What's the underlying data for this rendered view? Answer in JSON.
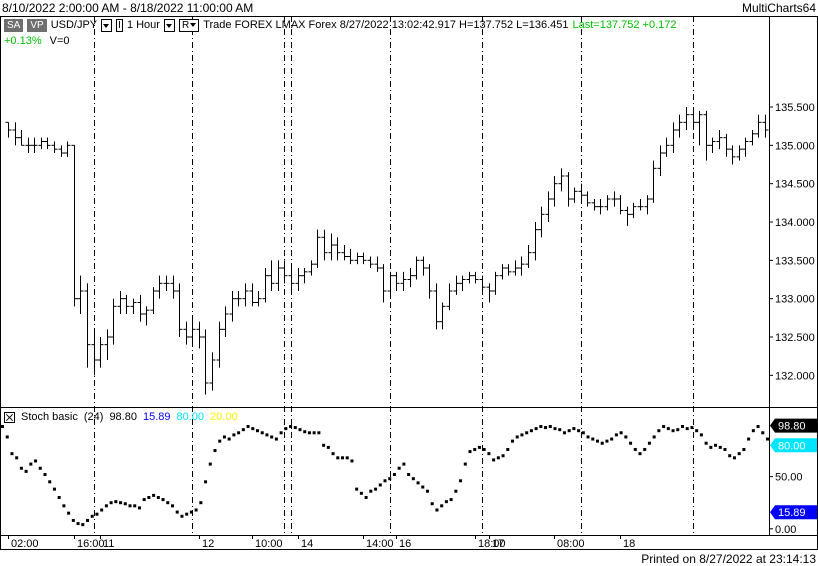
{
  "window": {
    "date_range": "8/10/2022 2:00:00 AM - 8/18/2022 11:00:00 AM",
    "brand": "MultiCharts64",
    "printed": "Printed on 8/27/2022 at 23:14:13"
  },
  "toolbar": {
    "sa_button": "SA",
    "vp_button": "VP",
    "symbol": "USD/JPY",
    "i_dropdown": "I",
    "interval": "1 Hour",
    "r_dropdown": "R",
    "info_text": "Trade  FOREX  LMAX  Forex  8/27/2022  13:02:42.917  H=137.752  L=136.451",
    "last": "Last=137.752  +0.172",
    "change_pct": "+0.13%",
    "volume": "V=0"
  },
  "indicator": {
    "name": "Stoch basic",
    "length": "(24)",
    "v1": "98.80",
    "v2": "15.89",
    "v3": "80.00",
    "v4": "20.00",
    "badge_top": "98.80",
    "badge_mid": "80.00",
    "badge_bot": "15.89"
  },
  "colors": {
    "v1": "#000000",
    "v2": "#0000ff",
    "v3": "#00e5ff",
    "v4": "#ffff00",
    "last": "#00c000",
    "gridline": "#000000"
  },
  "chart_data": [
    {
      "type": "ohlc",
      "series": "USD/JPY",
      "y_tick_labels": [
        "132.000",
        "132.500",
        "133.000",
        "133.500",
        "134.000",
        "134.500",
        "135.000",
        "135.500"
      ],
      "ylim": [
        131.6,
        136.1
      ],
      "x_tick_labels": [
        "02:00",
        "16:00",
        "11",
        "12",
        "10:00",
        "14",
        "14:00",
        "16",
        "18:00",
        "17",
        "08:00",
        "18"
      ],
      "session_separators": [
        "11",
        "12",
        "14",
        "14",
        "16",
        "17",
        "18"
      ],
      "bars": [
        [
          135.3,
          135.3,
          135.1,
          135.2
        ],
        [
          135.2,
          135.3,
          135.0,
          135.1
        ],
        [
          135.1,
          135.2,
          135.0,
          135.0
        ],
        [
          135.0,
          135.1,
          134.9,
          135.0
        ],
        [
          135.0,
          135.1,
          134.9,
          135.0
        ],
        [
          135.0,
          135.1,
          134.95,
          135.05
        ],
        [
          135.05,
          135.1,
          134.95,
          135.0
        ],
        [
          135.0,
          135.05,
          134.9,
          134.95
        ],
        [
          134.95,
          135.0,
          134.85,
          134.9
        ],
        [
          134.9,
          135.05,
          134.85,
          135.0
        ],
        [
          135.0,
          135.0,
          132.9,
          133.0
        ],
        [
          133.0,
          133.3,
          132.8,
          133.1
        ],
        [
          133.1,
          133.2,
          132.1,
          132.4
        ],
        [
          132.4,
          132.6,
          132.0,
          132.2
        ],
        [
          132.2,
          132.5,
          132.1,
          132.4
        ],
        [
          132.4,
          132.6,
          132.2,
          132.5
        ],
        [
          132.5,
          133.0,
          132.4,
          132.9
        ],
        [
          132.9,
          133.1,
          132.8,
          133.0
        ],
        [
          133.0,
          133.05,
          132.8,
          132.9
        ],
        [
          132.9,
          133.0,
          132.8,
          132.95
        ],
        [
          132.95,
          133.05,
          132.7,
          132.8
        ],
        [
          132.8,
          132.9,
          132.65,
          132.85
        ],
        [
          132.85,
          133.15,
          132.8,
          133.1
        ],
        [
          133.1,
          133.3,
          133.0,
          133.2
        ],
        [
          133.2,
          133.3,
          133.1,
          133.2
        ],
        [
          133.2,
          133.3,
          133.0,
          133.1
        ],
        [
          133.1,
          133.2,
          132.5,
          132.6
        ],
        [
          132.6,
          132.7,
          132.4,
          132.5
        ],
        [
          132.5,
          132.75,
          132.4,
          132.6
        ],
        [
          132.6,
          132.7,
          132.35,
          132.5
        ],
        [
          132.5,
          132.6,
          131.75,
          131.9
        ],
        [
          131.9,
          132.3,
          131.8,
          132.2
        ],
        [
          132.2,
          132.7,
          132.1,
          132.6
        ],
        [
          132.6,
          132.9,
          132.5,
          132.8
        ],
        [
          132.8,
          133.1,
          132.7,
          133.0
        ],
        [
          133.0,
          133.1,
          132.9,
          133.0
        ],
        [
          133.0,
          133.2,
          132.9,
          133.1
        ],
        [
          133.1,
          133.2,
          132.9,
          132.95
        ],
        [
          132.95,
          133.1,
          132.9,
          133.0
        ],
        [
          133.0,
          133.4,
          132.95,
          133.3
        ],
        [
          133.3,
          133.5,
          133.1,
          133.2
        ],
        [
          133.2,
          133.5,
          133.1,
          133.4
        ],
        [
          133.4,
          133.5,
          133.2,
          133.3
        ],
        [
          133.3,
          133.4,
          133.1,
          133.2
        ],
        [
          133.2,
          133.4,
          133.1,
          133.3
        ],
        [
          133.3,
          133.4,
          133.2,
          133.35
        ],
        [
          133.35,
          133.5,
          133.3,
          133.45
        ],
        [
          133.45,
          133.9,
          133.4,
          133.8
        ],
        [
          133.8,
          133.9,
          133.5,
          133.6
        ],
        [
          133.6,
          133.85,
          133.5,
          133.7
        ],
        [
          133.7,
          133.8,
          133.5,
          133.6
        ],
        [
          133.6,
          133.7,
          133.5,
          133.55
        ],
        [
          133.55,
          133.65,
          133.45,
          133.5
        ],
        [
          133.5,
          133.6,
          133.45,
          133.55
        ],
        [
          133.55,
          133.6,
          133.45,
          133.5
        ],
        [
          133.5,
          133.55,
          133.4,
          133.45
        ],
        [
          133.45,
          133.55,
          133.35,
          133.4
        ],
        [
          133.4,
          133.45,
          132.95,
          133.1
        ],
        [
          133.1,
          133.35,
          133.0,
          133.3
        ],
        [
          133.3,
          133.35,
          133.1,
          133.2
        ],
        [
          133.2,
          133.35,
          133.1,
          133.25
        ],
        [
          133.25,
          133.4,
          133.15,
          133.3
        ],
        [
          133.3,
          133.55,
          133.25,
          133.5
        ],
        [
          133.5,
          133.55,
          133.3,
          133.4
        ],
        [
          133.4,
          133.45,
          133.0,
          133.1
        ],
        [
          133.1,
          133.2,
          132.6,
          132.7
        ],
        [
          132.7,
          132.95,
          132.6,
          132.9
        ],
        [
          132.9,
          133.2,
          132.85,
          133.1
        ],
        [
          133.1,
          133.3,
          133.05,
          133.2
        ],
        [
          133.2,
          133.3,
          133.1,
          133.25
        ],
        [
          133.25,
          133.35,
          133.2,
          133.3
        ],
        [
          133.3,
          133.35,
          133.2,
          133.25
        ],
        [
          133.25,
          133.3,
          133.1,
          133.15
        ],
        [
          133.15,
          133.2,
          132.95,
          133.1
        ],
        [
          133.1,
          133.35,
          133.05,
          133.3
        ],
        [
          133.3,
          133.45,
          133.25,
          133.4
        ],
        [
          133.4,
          133.45,
          133.3,
          133.35
        ],
        [
          133.35,
          133.5,
          133.3,
          133.4
        ],
        [
          133.4,
          133.55,
          133.3,
          133.45
        ],
        [
          133.45,
          133.7,
          133.4,
          133.6
        ],
        [
          133.6,
          134.0,
          133.5,
          133.9
        ],
        [
          133.9,
          134.2,
          133.8,
          134.1
        ],
        [
          134.1,
          134.4,
          134.0,
          134.3
        ],
        [
          134.3,
          134.6,
          134.2,
          134.5
        ],
        [
          134.5,
          134.7,
          134.4,
          134.6
        ],
        [
          134.6,
          134.65,
          134.2,
          134.3
        ],
        [
          134.3,
          134.45,
          134.25,
          134.4
        ],
        [
          134.4,
          134.5,
          134.3,
          134.35
        ],
        [
          134.35,
          134.4,
          134.2,
          134.25
        ],
        [
          134.25,
          134.3,
          134.15,
          134.2
        ],
        [
          134.2,
          134.3,
          134.1,
          134.2
        ],
        [
          134.2,
          134.35,
          134.15,
          134.3
        ],
        [
          134.3,
          134.4,
          134.2,
          134.3
        ],
        [
          134.3,
          134.35,
          134.1,
          134.15
        ],
        [
          134.15,
          134.2,
          133.95,
          134.1
        ],
        [
          134.1,
          134.25,
          134.05,
          134.2
        ],
        [
          134.2,
          134.3,
          134.15,
          134.2
        ],
        [
          134.2,
          134.35,
          134.1,
          134.3
        ],
        [
          134.3,
          134.8,
          134.25,
          134.7
        ],
        [
          134.7,
          135.0,
          134.6,
          134.9
        ],
        [
          134.9,
          135.1,
          134.85,
          135.0
        ],
        [
          135.0,
          135.3,
          134.9,
          135.2
        ],
        [
          135.2,
          135.4,
          135.1,
          135.3
        ],
        [
          135.3,
          135.5,
          135.2,
          135.4
        ],
        [
          135.4,
          135.5,
          135.2,
          135.3
        ],
        [
          135.3,
          135.45,
          135.0,
          135.4
        ],
        [
          135.4,
          135.45,
          134.8,
          135.0
        ],
        [
          135.0,
          135.1,
          134.9,
          135.05
        ],
        [
          135.05,
          135.2,
          134.95,
          135.1
        ],
        [
          135.1,
          135.15,
          134.85,
          134.95
        ],
        [
          134.95,
          135.0,
          134.75,
          134.85
        ],
        [
          134.85,
          135.0,
          134.8,
          134.95
        ],
        [
          134.95,
          135.1,
          134.85,
          135.05
        ],
        [
          135.05,
          135.2,
          135.0,
          135.15
        ],
        [
          135.15,
          135.4,
          135.1,
          135.3
        ],
        [
          135.3,
          135.4,
          135.1,
          135.2
        ]
      ]
    },
    {
      "type": "scatter",
      "series": "Stoch basic",
      "y_tick_labels": [
        "0.00",
        "50.00"
      ],
      "ylim": [
        -5,
        110
      ],
      "levels": [
        20,
        80
      ],
      "values": [
        98,
        88,
        72,
        68,
        58,
        55,
        62,
        65,
        58,
        52,
        45,
        38,
        30,
        22,
        15,
        8,
        5,
        4,
        8,
        12,
        14,
        18,
        22,
        25,
        26,
        25,
        24,
        22,
        22,
        20,
        28,
        30,
        32,
        30,
        28,
        25,
        22,
        16,
        12,
        14,
        16,
        18,
        25,
        45,
        62,
        75,
        84,
        88,
        86,
        90,
        92,
        95,
        98,
        96,
        94,
        92,
        90,
        88,
        86,
        92,
        96,
        98,
        97,
        95,
        93,
        92,
        92,
        92,
        80,
        78,
        72,
        68,
        68,
        68,
        65,
        38,
        34,
        30,
        36,
        38,
        42,
        46,
        48,
        52,
        58,
        62,
        52,
        48,
        44,
        40,
        36,
        24,
        18,
        22,
        26,
        28,
        36,
        46,
        62,
        74,
        76,
        78,
        76,
        72,
        66,
        68,
        70,
        76,
        84,
        88,
        90,
        92,
        94,
        96,
        98,
        97,
        98,
        96,
        95,
        92,
        94,
        96,
        94,
        92,
        88,
        86,
        84,
        82,
        84,
        86,
        90,
        92,
        88,
        82,
        76,
        72,
        76,
        82,
        88,
        94,
        98,
        96,
        94,
        95,
        98,
        96,
        97,
        94,
        90,
        82,
        78,
        80,
        78,
        76,
        70,
        68,
        72,
        76,
        86,
        94,
        98,
        92,
        86
      ]
    }
  ]
}
